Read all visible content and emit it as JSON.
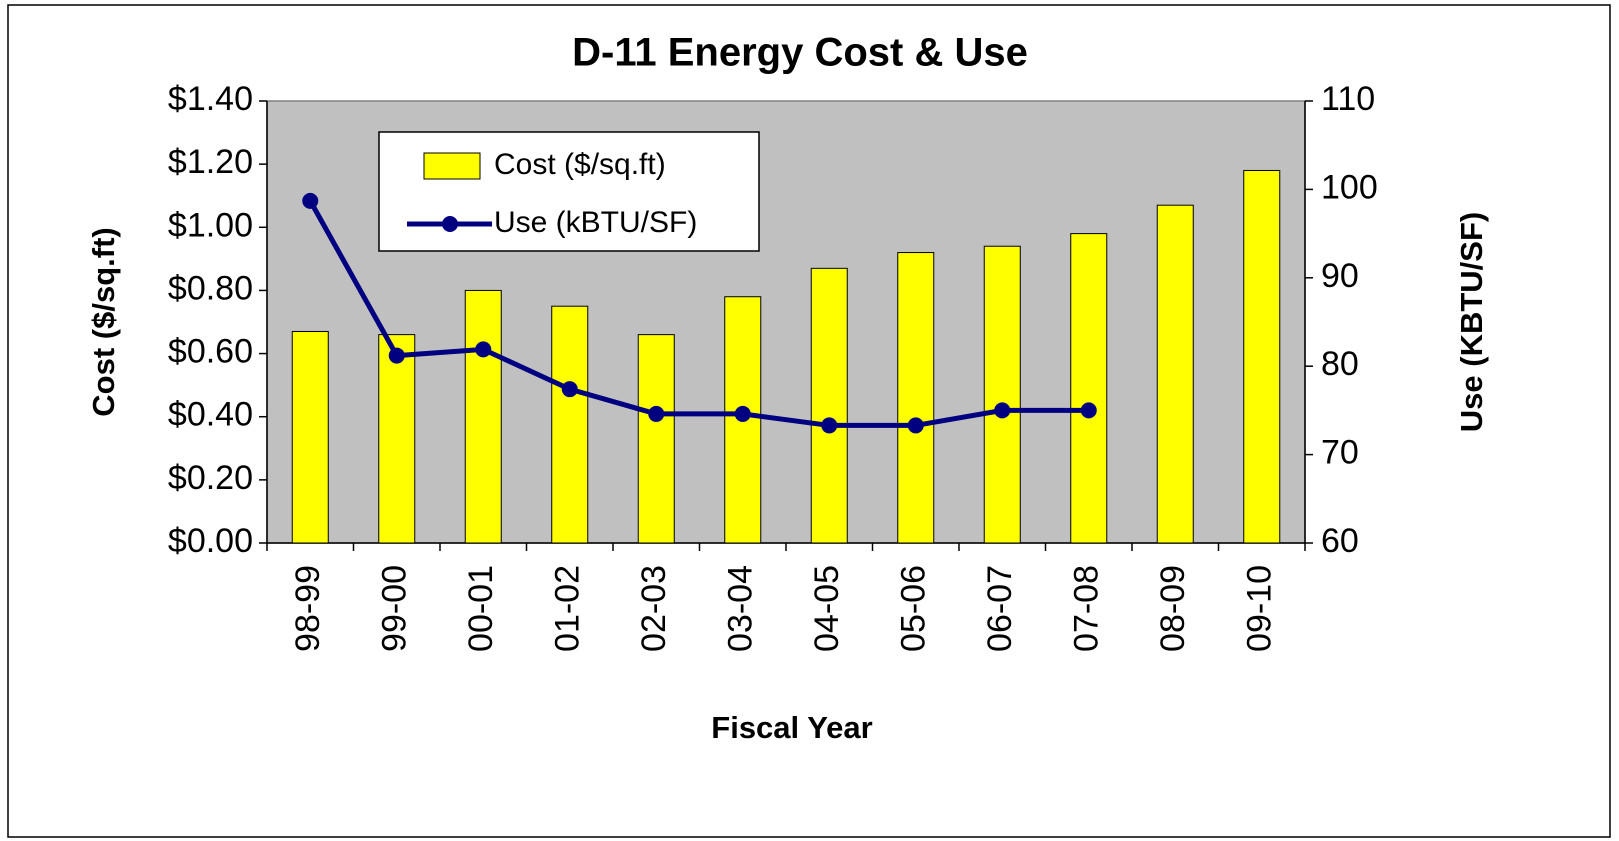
{
  "chart_data": {
    "type": "bar",
    "title": "D-11 Energy Cost & Use",
    "x_label": "Fiscal Year",
    "y_label": "Cost ($/sq.ft)",
    "y2_label": "Use (KBTU/SF)",
    "categories": [
      "98-99",
      "99-00",
      "00-01",
      "01-02",
      "02-03",
      "03-04",
      "04-05",
      "05-06",
      "06-07",
      "07-08",
      "08-09",
      "09-10"
    ],
    "series": [
      {
        "name": "Cost ($/sq.ft)",
        "type": "bar",
        "color": "#ffff00",
        "values": [
          0.67,
          0.66,
          0.8,
          0.75,
          0.66,
          0.78,
          0.87,
          0.92,
          0.94,
          0.98,
          1.07,
          1.18
        ]
      },
      {
        "name": "Use (kBTU/SF)",
        "type": "line",
        "color": "#000080",
        "axis": "y2",
        "values": [
          98.7,
          81.2,
          81.9,
          77.4,
          74.6,
          74.6,
          73.3,
          73.3,
          75.0,
          75.0,
          null,
          null
        ]
      }
    ],
    "ylim": [
      0,
      1.4
    ],
    "yticks": [
      {
        "value": 0,
        "label": "$0.00"
      },
      {
        "value": 0.2,
        "label": "$0.20"
      },
      {
        "value": 0.4,
        "label": "$0.40"
      },
      {
        "value": 0.6,
        "label": "$0.60"
      },
      {
        "value": 0.8,
        "label": "$0.80"
      },
      {
        "value": 1.0,
        "label": "$1.00"
      },
      {
        "value": 1.2,
        "label": "$1.20"
      },
      {
        "value": 1.4,
        "label": "$1.40"
      }
    ],
    "y2lim": [
      60,
      110
    ],
    "y2ticks": [
      60,
      70,
      80,
      90,
      100,
      110
    ],
    "plot_background": "#c0c0c0",
    "legend": "top-left"
  }
}
